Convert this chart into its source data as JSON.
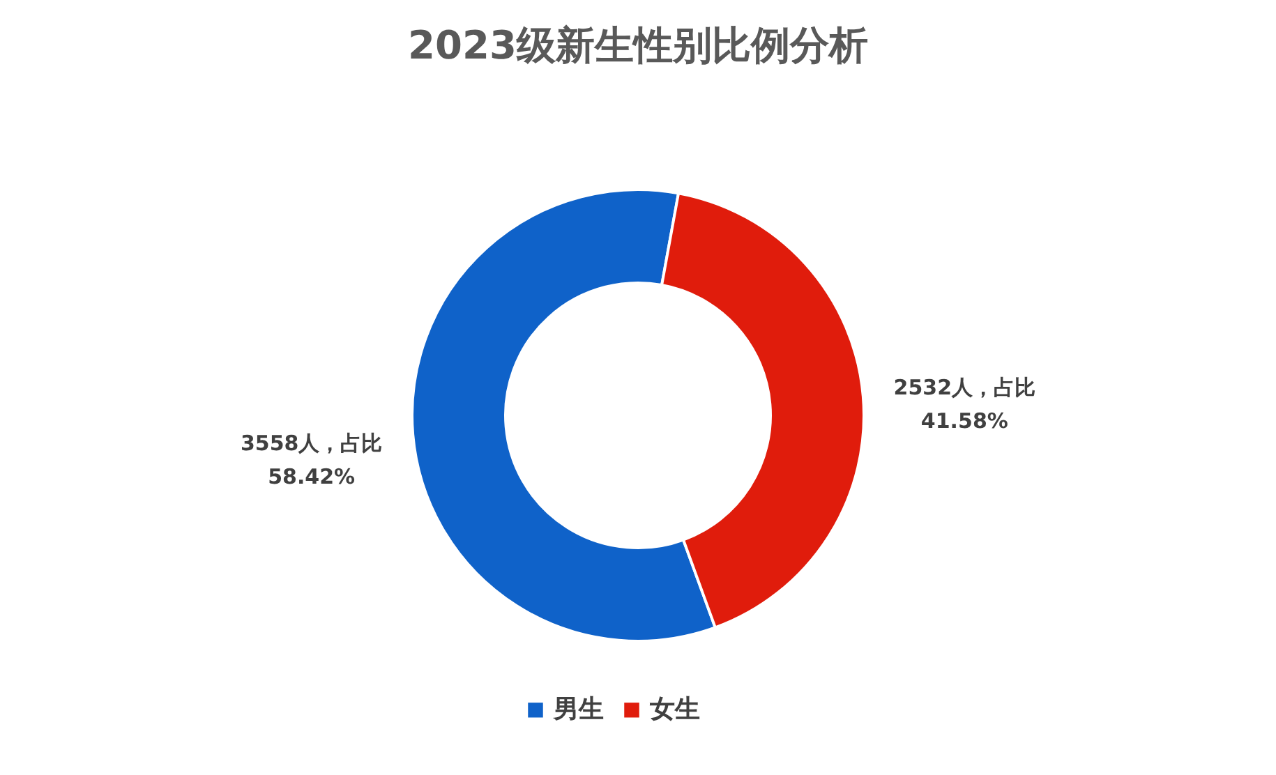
{
  "chart_data": {
    "type": "donut",
    "title": "2023级新生性别比例分析",
    "categories": [
      "男生",
      "女生"
    ],
    "values": [
      3558,
      2532
    ],
    "colors": [
      "#0f62c9",
      "#e01c0c"
    ],
    "value_labels": [
      "3558人，占比\n58.42%",
      "2532人，占比\n41.58%"
    ],
    "legend": "bottom"
  }
}
